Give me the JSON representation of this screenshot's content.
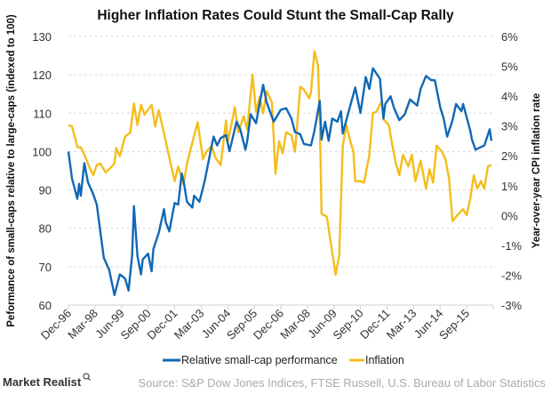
{
  "chart_data": {
    "type": "line",
    "title": "Higher Inflation Rates Could Stunt the Small-Cap Rally",
    "ylabel": "Peformance of small-caps relative to large-caps (indexed to 100)",
    "y2label": "Year-over-year CPI inflation rate",
    "ylim": [
      60,
      130
    ],
    "y2lim": [
      -3,
      6
    ],
    "yticks": [
      "60",
      "70",
      "80",
      "90",
      "100",
      "110",
      "120",
      "130"
    ],
    "y2ticks": [
      "-3%",
      "-2%",
      "-1%",
      "0%",
      "1%",
      "2%",
      "3%",
      "4%",
      "5%",
      "6%"
    ],
    "xlim": [
      "1996-12",
      "2016-12"
    ],
    "xticks": [
      "Dec-96",
      "Mar-98",
      "Jun-99",
      "Sep-00",
      "Dec-01",
      "Mar-03",
      "Jun-04",
      "Sep-05",
      "Dec-06",
      "Mar-08",
      "Jun-09",
      "Sep-10",
      "Dec-11",
      "Mar-13",
      "Jun-14",
      "Sep-15"
    ],
    "grid": "horizontal dashed",
    "legend_position": "bottom",
    "series": [
      {
        "name": "Relative small-cap performance",
        "axis": "left",
        "color": "#1068b5",
        "points": [
          [
            "1996-12",
            100
          ],
          [
            "1997-02",
            93
          ],
          [
            "1997-05",
            87.7
          ],
          [
            "1997-06",
            91.6
          ],
          [
            "1997-07",
            88.5
          ],
          [
            "1997-09",
            97
          ],
          [
            "1997-11",
            92
          ],
          [
            "1998-02",
            88.9
          ],
          [
            "1998-04",
            86.2
          ],
          [
            "1998-08",
            72.3
          ],
          [
            "1998-11",
            69.2
          ],
          [
            "1999-02",
            62.6
          ],
          [
            "1999-05",
            68
          ],
          [
            "1999-08",
            66.9
          ],
          [
            "1999-10",
            63.8
          ],
          [
            "1999-12",
            73.1
          ],
          [
            "2000-01",
            85.8
          ],
          [
            "2000-03",
            72.7
          ],
          [
            "2000-05",
            68
          ],
          [
            "2000-06",
            71.9
          ],
          [
            "2000-09",
            73.4
          ],
          [
            "2000-11",
            68.8
          ],
          [
            "2000-12",
            74.6
          ],
          [
            "2001-03",
            78.8
          ],
          [
            "2001-06",
            85
          ],
          [
            "2001-07",
            81.6
          ],
          [
            "2001-09",
            79.2
          ],
          [
            "2001-12",
            86.6
          ],
          [
            "2002-02",
            86.2
          ],
          [
            "2002-04",
            94.3
          ],
          [
            "2002-05",
            92.4
          ],
          [
            "2002-07",
            86.9
          ],
          [
            "2002-10",
            85.4
          ],
          [
            "2002-11",
            88.5
          ],
          [
            "2003-02",
            86.9
          ],
          [
            "2003-05",
            92.4
          ],
          [
            "2003-08",
            99.3
          ],
          [
            "2003-10",
            103.9
          ],
          [
            "2003-12",
            101.6
          ],
          [
            "2004-02",
            103.5
          ],
          [
            "2004-05",
            104.3
          ],
          [
            "2004-07",
            100.1
          ],
          [
            "2004-11",
            107.8
          ],
          [
            "2005-01",
            105.9
          ],
          [
            "2005-04",
            100.5
          ],
          [
            "2005-05",
            102.8
          ],
          [
            "2005-07",
            109.7
          ],
          [
            "2005-10",
            107.4
          ],
          [
            "2006-02",
            117.4
          ],
          [
            "2006-04",
            112.8
          ],
          [
            "2006-08",
            107.8
          ],
          [
            "2006-12",
            110.9
          ],
          [
            "2007-03",
            111.3
          ],
          [
            "2007-06",
            108.6
          ],
          [
            "2007-08",
            105.1
          ],
          [
            "2007-11",
            104.5
          ],
          [
            "2008-01",
            102
          ],
          [
            "2008-05",
            101.6
          ],
          [
            "2008-07",
            105.4
          ],
          [
            "2008-10",
            113.2
          ],
          [
            "2008-11",
            103.1
          ],
          [
            "2009-01",
            107.8
          ],
          [
            "2009-03",
            102.8
          ],
          [
            "2009-05",
            108.6
          ],
          [
            "2009-08",
            107.8
          ],
          [
            "2009-10",
            110.5
          ],
          [
            "2009-11",
            104.7
          ],
          [
            "2010-01",
            108.2
          ],
          [
            "2010-06",
            116.7
          ],
          [
            "2010-09",
            110.1
          ],
          [
            "2010-12",
            119.4
          ],
          [
            "2011-02",
            116.3
          ],
          [
            "2011-04",
            121.7
          ],
          [
            "2011-08",
            119
          ],
          [
            "2011-10",
            108.6
          ],
          [
            "2011-11",
            112.4
          ],
          [
            "2012-02",
            114.4
          ],
          [
            "2012-04",
            111.3
          ],
          [
            "2012-07",
            108.2
          ],
          [
            "2012-10",
            109.7
          ],
          [
            "2013-01",
            113.6
          ],
          [
            "2013-05",
            112
          ],
          [
            "2013-07",
            116.3
          ],
          [
            "2013-10",
            119.7
          ],
          [
            "2014-01",
            118.6
          ],
          [
            "2014-03",
            118.6
          ],
          [
            "2014-06",
            111.6
          ],
          [
            "2014-08",
            108.6
          ],
          [
            "2014-10",
            103.9
          ],
          [
            "2015-01",
            108.2
          ],
          [
            "2015-03",
            112.4
          ],
          [
            "2015-06",
            110.5
          ],
          [
            "2015-07",
            112.4
          ],
          [
            "2015-11",
            105.5
          ],
          [
            "2015-12",
            103.1
          ],
          [
            "2016-02",
            100.5
          ],
          [
            "2016-05",
            101.2
          ],
          [
            "2016-07",
            101.6
          ],
          [
            "2016-10",
            105.8
          ],
          [
            "2016-11",
            102.8
          ]
        ]
      },
      {
        "name": "Inflation",
        "axis": "right",
        "color": "#f4bd1b",
        "points": [
          [
            "1996-12",
            3.03
          ],
          [
            "1997-02",
            2.98
          ],
          [
            "1997-04",
            2.54
          ],
          [
            "1997-05",
            2.29
          ],
          [
            "1997-07",
            2.29
          ],
          [
            "1997-09",
            2.04
          ],
          [
            "1997-12",
            1.6
          ],
          [
            "1998-02",
            1.35
          ],
          [
            "1998-04",
            1.69
          ],
          [
            "1998-06",
            1.74
          ],
          [
            "1998-09",
            1.45
          ],
          [
            "1998-11",
            1.55
          ],
          [
            "1999-02",
            1.74
          ],
          [
            "1999-03",
            2.26
          ],
          [
            "1999-05",
            1.99
          ],
          [
            "1999-08",
            2.64
          ],
          [
            "1999-11",
            2.79
          ],
          [
            "2000-01",
            3.75
          ],
          [
            "2000-03",
            3.03
          ],
          [
            "2000-05",
            3.71
          ],
          [
            "2000-07",
            3.38
          ],
          [
            "2000-11",
            3.71
          ],
          [
            "2001-01",
            2.98
          ],
          [
            "2001-03",
            3.53
          ],
          [
            "2001-06",
            2.74
          ],
          [
            "2001-09",
            1.94
          ],
          [
            "2001-12",
            1.15
          ],
          [
            "2002-02",
            1.64
          ],
          [
            "2002-05",
            1.05
          ],
          [
            "2002-07",
            1.74
          ],
          [
            "2002-10",
            2.44
          ],
          [
            "2003-01",
            3.13
          ],
          [
            "2003-04",
            1.89
          ],
          [
            "2003-06",
            2.14
          ],
          [
            "2003-09",
            2.34
          ],
          [
            "2003-11",
            1.94
          ],
          [
            "2004-02",
            1.69
          ],
          [
            "2004-05",
            3.18
          ],
          [
            "2004-06",
            2.44
          ],
          [
            "2004-10",
            3.63
          ],
          [
            "2004-12",
            2.79
          ],
          [
            "2005-03",
            3.33
          ],
          [
            "2005-05",
            2.88
          ],
          [
            "2005-08",
            4.72
          ],
          [
            "2005-10",
            3.48
          ],
          [
            "2005-12",
            3.98
          ],
          [
            "2006-02",
            3.43
          ],
          [
            "2006-04",
            4.17
          ],
          [
            "2006-07",
            3.78
          ],
          [
            "2006-09",
            1.4
          ],
          [
            "2006-11",
            2.49
          ],
          [
            "2007-01",
            2.09
          ],
          [
            "2007-03",
            2.79
          ],
          [
            "2007-06",
            2.68
          ],
          [
            "2007-08",
            2.14
          ],
          [
            "2007-11",
            4.32
          ],
          [
            "2008-01",
            4.22
          ],
          [
            "2008-04",
            3.93
          ],
          [
            "2008-05",
            4.13
          ],
          [
            "2008-07",
            5.51
          ],
          [
            "2008-09",
            5.02
          ],
          [
            "2008-10",
            3.33
          ],
          [
            "2008-11",
            0.06
          ],
          [
            "2009-02",
            -0.04
          ],
          [
            "2009-04",
            -0.84
          ],
          [
            "2009-07",
            -1.98
          ],
          [
            "2009-09",
            -1.33
          ],
          [
            "2009-11",
            2.34
          ],
          [
            "2010-01",
            3.03
          ],
          [
            "2010-03",
            2.54
          ],
          [
            "2010-05",
            2.14
          ],
          [
            "2010-06",
            1.15
          ],
          [
            "2010-09",
            1.15
          ],
          [
            "2010-11",
            1.1
          ],
          [
            "2011-02",
            2.04
          ],
          [
            "2011-04",
            3.43
          ],
          [
            "2011-06",
            3.48
          ],
          [
            "2011-09",
            3.83
          ],
          [
            "2011-10",
            3.23
          ],
          [
            "2012-01",
            3.03
          ],
          [
            "2012-03",
            2.34
          ],
          [
            "2012-05",
            1.74
          ],
          [
            "2012-07",
            1.35
          ],
          [
            "2012-09",
            2.04
          ],
          [
            "2012-12",
            1.64
          ],
          [
            "2013-02",
            2.04
          ],
          [
            "2013-04",
            1.15
          ],
          [
            "2013-07",
            1.84
          ],
          [
            "2013-10",
            0.9
          ],
          [
            "2013-12",
            1.55
          ],
          [
            "2014-02",
            1.1
          ],
          [
            "2014-04",
            2.34
          ],
          [
            "2014-07",
            2.14
          ],
          [
            "2014-09",
            1.89
          ],
          [
            "2014-11",
            1.25
          ],
          [
            "2015-01",
            -0.19
          ],
          [
            "2015-03",
            -0.04
          ],
          [
            "2015-06",
            0.16
          ],
          [
            "2015-07",
            0.21
          ],
          [
            "2015-09",
            0.01
          ],
          [
            "2015-11",
            0.55
          ],
          [
            "2016-01",
            1.35
          ],
          [
            "2016-03",
            0.9
          ],
          [
            "2016-05",
            1.15
          ],
          [
            "2016-07",
            0.9
          ],
          [
            "2016-09",
            1.64
          ],
          [
            "2016-11",
            1.7
          ]
        ]
      }
    ]
  },
  "footer": {
    "brand": "Market Realist",
    "source": "Source: S&P Dow Jones Indices, FTSE Russell, U.S. Bureau of Labor Statistics"
  }
}
